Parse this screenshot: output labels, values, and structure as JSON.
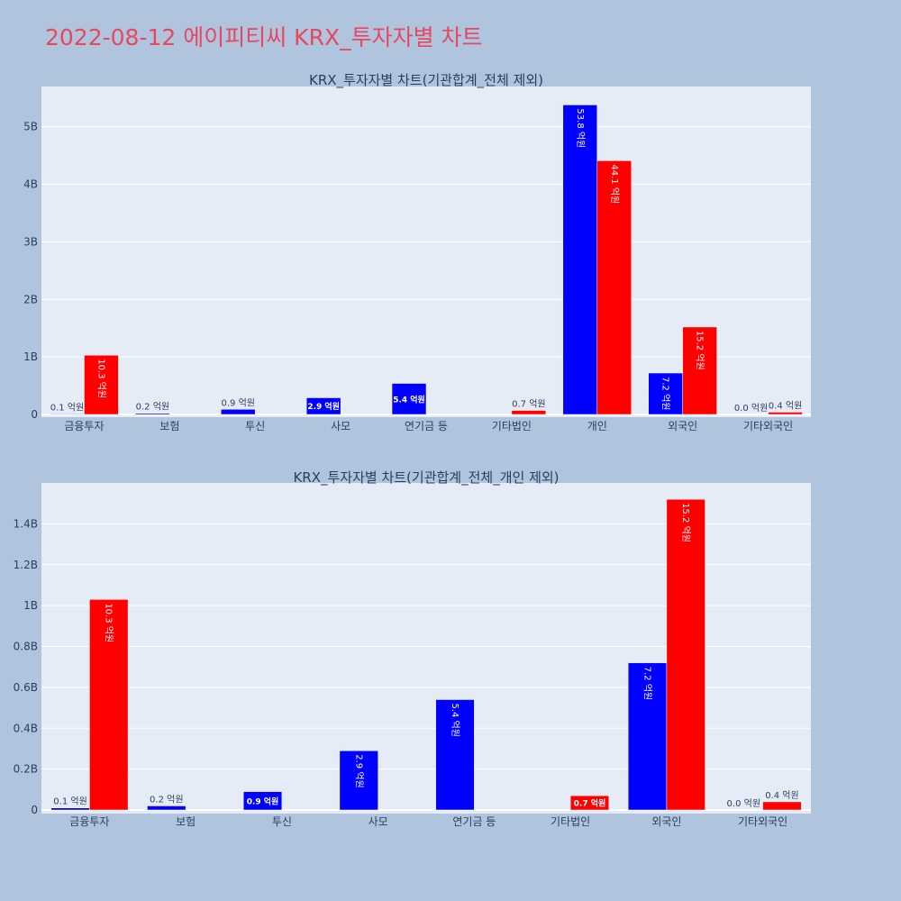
{
  "title": "2022-08-12 에이피티씨 KRX_투자자별 차트",
  "chart_data": [
    {
      "type": "bar",
      "title": "KRX_투자자별 차트(기관합계_전체 제외)",
      "categories": [
        "금융투자",
        "보험",
        "투신",
        "사모",
        "연기금 등",
        "기타법인",
        "개인",
        "외국인",
        "기타외국인"
      ],
      "series": [
        {
          "color": "#0000ff",
          "values": [
            0.01,
            0.02,
            0.09,
            0.29,
            0.54,
            0.0,
            5.38,
            0.72,
            0.0
          ],
          "labels": [
            "0.1 억원",
            "0.2 억원",
            "0.9 억원",
            "2.9 억원",
            "5.4 억원",
            "",
            "53.8 억원",
            "7.2 억원",
            "0.0 억원"
          ]
        },
        {
          "color": "#ff0000",
          "values": [
            1.03,
            0.0,
            0.0,
            0.0,
            0.0,
            0.07,
            4.41,
            1.52,
            0.04
          ],
          "labels": [
            "10.3 억원",
            "",
            "",
            "",
            "",
            "0.7 억원",
            "44.1 억원",
            "15.2 억원",
            "0.4 억원"
          ]
        }
      ],
      "yunit": "B",
      "ylim": [
        0,
        5.7
      ],
      "yticks": [
        "0",
        "1B",
        "2B",
        "3B",
        "4B",
        "5B"
      ],
      "grid": true
    },
    {
      "type": "bar",
      "title": "KRX_투자자별 차트(기관합계_전체_개인 제외)",
      "categories": [
        "금융투자",
        "보험",
        "투신",
        "사모",
        "연기금 등",
        "기타법인",
        "외국인",
        "기타외국인"
      ],
      "series": [
        {
          "color": "#0000ff",
          "values": [
            0.01,
            0.02,
            0.09,
            0.29,
            0.54,
            0.0,
            0.72,
            0.0
          ],
          "labels": [
            "0.1 억원",
            "0.2 억원",
            "0.9 억원",
            "2.9 억원",
            "5.4 억원",
            "",
            "7.2 억원",
            "0.0 억원"
          ]
        },
        {
          "color": "#ff0000",
          "values": [
            1.03,
            0.0,
            0.0,
            0.0,
            0.0,
            0.07,
            1.52,
            0.04
          ],
          "labels": [
            "10.3 억원",
            "",
            "",
            "",
            "",
            "0.7 억원",
            "15.2 억원",
            "0.4 억원"
          ]
        }
      ],
      "yunit": "B",
      "ylim": [
        0,
        1.6
      ],
      "yticks": [
        "0",
        "0.2B",
        "0.4B",
        "0.6B",
        "0.8B",
        "1B",
        "1.2B",
        "1.4B"
      ],
      "grid": true
    }
  ]
}
